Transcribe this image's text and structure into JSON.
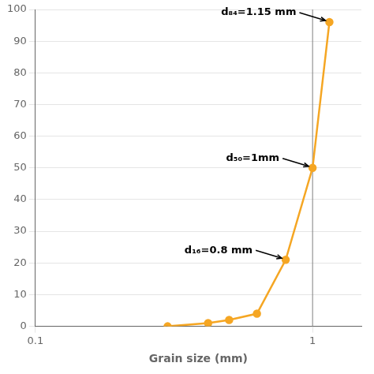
{
  "chart_data": {
    "type": "line",
    "x": [
      0.3,
      0.42,
      0.5,
      0.63,
      0.8,
      1.0,
      1.15
    ],
    "values": [
      0,
      1,
      2,
      4,
      21,
      50,
      96
    ],
    "color": "#F5A623",
    "xlabel": "Grain size (mm)",
    "log": "x",
    "xlim": [
      0.1,
      1.5
    ],
    "xticks": [
      0.1,
      1
    ],
    "ylim": [
      0,
      100
    ],
    "yticks": [
      0,
      10,
      20,
      30,
      40,
      50,
      60,
      70,
      80,
      90,
      100
    ],
    "grid": true,
    "vline": {
      "x": 1.0,
      "color": "#888888"
    },
    "annotations": [
      {
        "text": "d₈₄=1.15 mm",
        "x": 1.15,
        "y": 96
      },
      {
        "text": "d₅₀=1mm",
        "x": 1.0,
        "y": 50
      },
      {
        "text": "d₁₆=0.8 mm",
        "x": 0.8,
        "y": 21
      }
    ]
  }
}
